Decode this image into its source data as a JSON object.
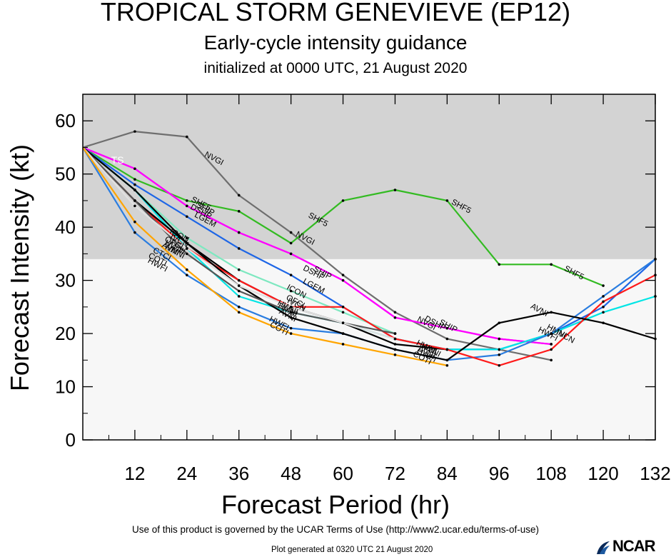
{
  "header": {
    "title": "TROPICAL STORM GENEVIEVE (EP12)",
    "subtitle": "Early-cycle intensity guidance",
    "initialized": "initialized at 0000 UTC, 21 August 2020"
  },
  "footer": {
    "terms": "Use of this product is governed by the UCAR Terms of Use (http://www2.ucar.edu/terms-of-use)",
    "generated": "Plot generated at 0320 UTC   21 August 2020",
    "logo": "NCAR"
  },
  "chart_data": {
    "type": "line",
    "xlabel": "Forecast Period (hr)",
    "ylabel": "Forecast Intensity (kt)",
    "xlim": [
      0,
      132
    ],
    "ylim": [
      0,
      65
    ],
    "xticks": [
      12,
      24,
      36,
      48,
      60,
      72,
      84,
      96,
      108,
      120,
      132
    ],
    "yticks": [
      0,
      10,
      20,
      30,
      40,
      50,
      60
    ],
    "shaded_band": {
      "from": 34,
      "to": 65,
      "color": "#d3d3d3",
      "meaning": "tropical storm strength"
    },
    "lower_band_color": "#f7f7f7",
    "grid": false,
    "legend": "none",
    "annotations": [
      {
        "text": "TS",
        "x": 8,
        "y": 52,
        "color": "#ffffff"
      }
    ],
    "series": [
      {
        "name": "NVGI",
        "color": "#6e6e6e",
        "x": [
          0,
          12,
          24,
          36,
          48,
          60,
          72,
          84,
          96,
          108
        ],
        "y": [
          55,
          58,
          57,
          46,
          39,
          31,
          24,
          19,
          17,
          15
        ],
        "label_at": [
          [
            30,
            52.5
          ],
          [
            51,
            37.5
          ],
          [
            79,
            21.5
          ]
        ]
      },
      {
        "name": "SHF5",
        "color": "#33bb22",
        "x": [
          0,
          12,
          24,
          36,
          48,
          60,
          72,
          84,
          96,
          108,
          120
        ],
        "y": [
          55,
          49,
          45,
          43,
          37,
          45,
          47,
          45,
          33,
          33,
          29
        ],
        "label_at": [
          [
            27,
            44
          ],
          [
            54,
            41
          ],
          [
            87,
            43.5
          ],
          [
            113,
            31
          ]
        ]
      },
      {
        "name": "SHIP",
        "color": "#ff00ff",
        "x": [
          0,
          12,
          24,
          36,
          48,
          60,
          72,
          84,
          96,
          108
        ],
        "y": [
          55,
          51,
          44,
          39,
          35,
          30,
          23,
          21,
          19,
          18
        ],
        "label_at": [
          [
            28,
            43
          ],
          [
            55,
            31
          ],
          [
            84,
            21
          ]
        ]
      },
      {
        "name": "DSHP",
        "color": "#ff00ff",
        "x": [
          0,
          12,
          24,
          36,
          48,
          60,
          72,
          84,
          96,
          108
        ],
        "y": [
          55,
          51,
          44,
          39,
          35,
          30,
          23,
          21,
          19,
          18
        ],
        "label_at": [
          [
            27,
            42.5
          ],
          [
            53,
            31
          ],
          [
            81,
            21.5
          ]
        ]
      },
      {
        "name": "LGEM",
        "color": "#1e66e6",
        "x": [
          0,
          12,
          24,
          36,
          48,
          60,
          72,
          84,
          96,
          108,
          120,
          132
        ],
        "y": [
          55,
          48,
          42,
          36,
          31,
          25,
          19,
          17,
          17,
          20,
          25,
          34
        ],
        "label_at": [
          [
            28,
            41
          ],
          [
            53,
            28.5
          ]
        ]
      },
      {
        "name": "ICON",
        "color": "#7ee8c0",
        "x": [
          0,
          12,
          24,
          36,
          48,
          60,
          72
        ],
        "y": [
          55,
          47,
          38,
          32,
          28,
          24,
          20
        ],
        "label_at": [
          [
            22,
            38
          ],
          [
            49,
            27.5
          ]
        ]
      },
      {
        "name": "IVCN",
        "color": "#00e5e5",
        "x": [
          0,
          12,
          24,
          36,
          48,
          60,
          72,
          84,
          96,
          108,
          120,
          132
        ],
        "y": [
          55,
          47,
          36,
          27,
          24,
          22,
          19,
          17,
          17,
          20,
          24,
          27
        ],
        "label_at": [
          [
            22,
            37
          ],
          [
            49,
            25
          ],
          [
            111,
            19
          ]
        ]
      },
      {
        "name": "OFCL",
        "color": "#000000",
        "x": [
          0,
          12,
          24,
          36,
          48,
          60,
          72,
          84
        ],
        "y": [
          55,
          47,
          37,
          30,
          25,
          22,
          18,
          17
        ],
        "label_at": [
          [
            21,
            36.5
          ],
          [
            49,
            25.5
          ]
        ]
      },
      {
        "name": "HWFI",
        "color": "#2a7de0",
        "x": [
          0,
          12,
          24,
          36,
          48,
          60,
          72,
          84,
          96,
          108,
          120,
          132
        ],
        "y": [
          55,
          39,
          31,
          25,
          21,
          20,
          17,
          15,
          16,
          20,
          27,
          34
        ],
        "label_at": [
          [
            17,
            32.5
          ],
          [
            45,
            21.5
          ],
          [
            79,
            15.5
          ],
          [
            107,
            19.5
          ]
        ]
      },
      {
        "name": "HMNI",
        "color": "#ff1a1a",
        "x": [
          0,
          12,
          24,
          36,
          48,
          60,
          72,
          84,
          96,
          108,
          120,
          132
        ],
        "y": [
          55,
          45,
          36,
          30,
          25,
          25,
          19,
          17,
          14,
          17,
          26,
          31
        ],
        "label_at": [
          [
            21,
            35
          ],
          [
            47,
            24
          ],
          [
            80,
            16.5
          ],
          [
            109,
            20
          ]
        ]
      },
      {
        "name": "AVNI",
        "color": "#000000",
        "x": [
          0,
          12,
          24,
          36,
          48,
          60,
          72,
          84,
          96,
          108,
          120,
          132
        ],
        "y": [
          55,
          45,
          37,
          29,
          23,
          20,
          17,
          15,
          22,
          24,
          22,
          19
        ],
        "label_at": [
          [
            20,
            35.5
          ],
          [
            47,
            23
          ],
          [
            79,
            16
          ],
          [
            105,
            24
          ]
        ]
      },
      {
        "name": "HWNI",
        "color": "#555555",
        "x": [
          0,
          12,
          24,
          36,
          48,
          60,
          72
        ],
        "y": [
          55,
          45,
          35,
          28,
          24,
          22,
          20
        ],
        "label_at": [
          [
            21,
            35.8
          ],
          [
            47,
            24.5
          ],
          [
            79,
            17
          ]
        ]
      },
      {
        "name": "CTCI",
        "color": "#e0e0e0",
        "x": [
          0,
          12,
          24,
          36,
          48,
          60,
          72
        ],
        "y": [
          55,
          44,
          36,
          29,
          25,
          22,
          19
        ],
        "label_at": [
          [
            18,
            34.5
          ]
        ]
      },
      {
        "name": "COTI",
        "color": "#ffa500",
        "x": [
          0,
          12,
          24,
          36,
          48,
          60,
          72,
          84
        ],
        "y": [
          55,
          41,
          32,
          24,
          20,
          18,
          16,
          14
        ],
        "label_at": [
          [
            17,
            33.5
          ],
          [
            45,
            20.5
          ],
          [
            78,
            15
          ]
        ]
      },
      {
        "name": "HWFI ",
        "color": "#ff8800",
        "x": [],
        "y": [],
        "label_at": []
      }
    ]
  }
}
